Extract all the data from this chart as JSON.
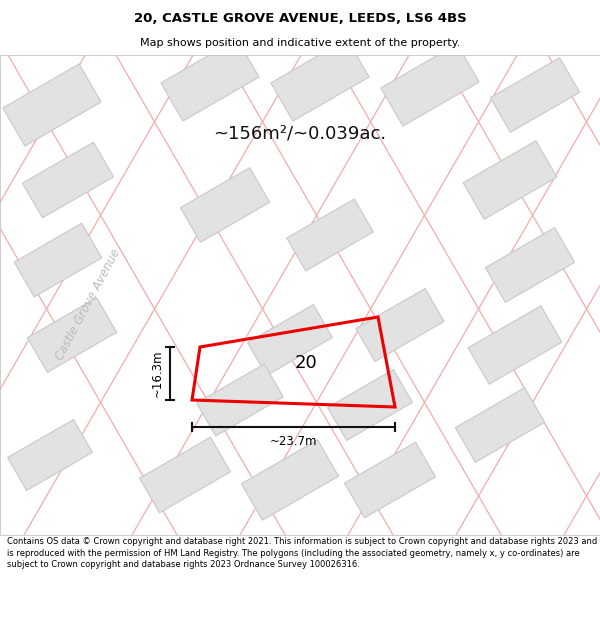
{
  "title_line1": "20, CASTLE GROVE AVENUE, LEEDS, LS6 4BS",
  "title_line2": "Map shows position and indicative extent of the property.",
  "area_text": "~156m²/~0.039ac.",
  "property_number": "20",
  "dim_width": "~23.7m",
  "dim_height": "~16.3m",
  "street_label": "Castle Grove Avenue",
  "footer_text": "Contains OS data © Crown copyright and database right 2021. This information is subject to Crown copyright and database rights 2023 and is reproduced with the permission of HM Land Registry. The polygons (including the associated geometry, namely x, y co-ordinates) are subject to Crown copyright and database rights 2023 Ordnance Survey 100026316.",
  "bg_color": "#ffffff",
  "map_bg": "#f7f7f7",
  "building_fill": "#e2e2e2",
  "building_edge": "#c8c8c8",
  "road_line_color": "#f5aaaa",
  "property_edge": "#ee0000",
  "title_color": "#000000",
  "footer_color": "#000000",
  "dim_line_color": "#111111",
  "street_label_color": "#bbbbbb",
  "area_text_color": "#111111"
}
